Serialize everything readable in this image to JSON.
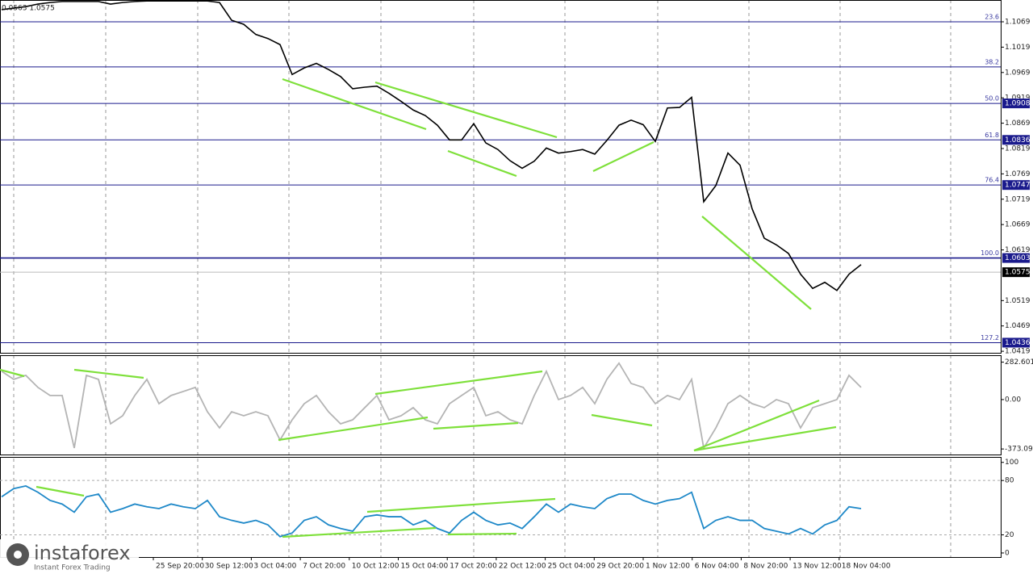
{
  "header": {
    "text": "0.0563 1.0575"
  },
  "chart_data": [
    {
      "type": "line",
      "color": "#000000",
      "values": [
        1.1093,
        1.1096,
        1.1099,
        1.1104,
        1.1107,
        1.1109,
        1.1109,
        1.1109,
        1.1109,
        1.1104,
        1.1107,
        1.1109,
        1.111,
        1.111,
        1.111,
        1.111,
        1.111,
        1.111,
        1.1107,
        1.1072,
        1.1064,
        1.1044,
        1.1036,
        1.1024,
        1.0965,
        1.0978,
        1.0987,
        1.0975,
        1.0961,
        1.0937,
        1.094,
        1.0942,
        1.0928,
        1.0912,
        1.0895,
        1.0884,
        1.0865,
        1.0836,
        1.0836,
        1.0868,
        1.083,
        1.0817,
        1.0795,
        1.078,
        1.0794,
        1.082,
        1.081,
        1.0813,
        1.0817,
        1.0808,
        1.0835,
        1.0865,
        1.0875,
        1.0866,
        1.0833,
        1.0899,
        1.09,
        1.092,
        1.0714,
        1.0746,
        1.081,
        1.0786,
        1.07,
        1.0642,
        1.0629,
        1.0612,
        1.0571,
        1.0543,
        1.0555,
        1.0539,
        1.0571,
        1.059
      ],
      "ylim": [
        1.0416,
        1.1112
      ],
      "yticks": [
        1.1069,
        1.1019,
        1.0969,
        1.0919,
        1.0869,
        1.0819,
        1.0769,
        1.0719,
        1.0669,
        1.0619,
        1.0519,
        1.0469,
        1.0419
      ],
      "fib_levels": [
        {
          "label": "23.6",
          "value": 1.1069
        },
        {
          "label": "38.2",
          "value": 1.098
        },
        {
          "label": "50.0",
          "value": 1.0908,
          "value_label": "1.0908"
        },
        {
          "label": "61.8",
          "value": 1.0836,
          "value_label": "1.0836"
        },
        {
          "label": "76.4",
          "value": 1.0747,
          "value_label": "1.0747"
        },
        {
          "label": "100.0",
          "value": 1.0603,
          "value_label": "1.0603"
        },
        {
          "label": "127.2",
          "value": 1.0436,
          "value_label": "1.0436"
        }
      ],
      "current_price": 1.0575
    },
    {
      "type": "line",
      "color": "#b4b4b4",
      "values": [
        214,
        153,
        183,
        92,
        31,
        31,
        -366,
        183,
        153,
        -183,
        -122,
        31,
        153,
        -31,
        31,
        61,
        92,
        -92,
        -214,
        -92,
        -122,
        -92,
        -122,
        -305,
        -153,
        -31,
        31,
        -92,
        -183,
        -153,
        -61,
        31,
        -153,
        -122,
        -61,
        -153,
        -183,
        -31,
        31,
        92,
        -122,
        -92,
        -153,
        -183,
        31,
        214,
        0,
        31,
        92,
        -31,
        153,
        275,
        122,
        92,
        -31,
        31,
        0,
        153,
        -366,
        -214,
        -31,
        31,
        -31,
        -61,
        0,
        -31,
        -214,
        -61,
        -31,
        0,
        183,
        92
      ],
      "ylim": [
        -415,
        335
      ],
      "yticks": [
        282.6012,
        {
          "value": 0,
          "label": "0.00"
        },
        -373.0978
      ]
    },
    {
      "type": "line",
      "color": "#1e88c8",
      "values": [
        62,
        71,
        74,
        67,
        58,
        54,
        45,
        62,
        65,
        45,
        49,
        54,
        51,
        49,
        54,
        51,
        49,
        58,
        40,
        36,
        33,
        36,
        31,
        18,
        22,
        36,
        40,
        31,
        27,
        24,
        40,
        42,
        40,
        40,
        31,
        36,
        27,
        22,
        36,
        45,
        36,
        31,
        33,
        27,
        40,
        54,
        45,
        54,
        51,
        49,
        60,
        65,
        65,
        58,
        54,
        58,
        60,
        67,
        27,
        36,
        40,
        36,
        36,
        27,
        24,
        21,
        27,
        21,
        31,
        36,
        51,
        49
      ],
      "ylim": [
        -4.5,
        106
      ],
      "yticks": [
        100,
        80,
        20,
        0
      ],
      "levels": [
        80,
        20
      ]
    }
  ],
  "time_axis": {
    "labels": [
      "25 Sep 20:00",
      "30 Sep 12:00",
      "3 Oct 04:00",
      "7 Oct 20:00",
      "10 Oct 12:00",
      "15 Oct 04:00",
      "17 Oct 20:00",
      "22 Oct 12:00",
      "25 Oct 04:00",
      "29 Oct 20:00",
      "1 Nov 12:00",
      "6 Nov 04:00",
      "8 Nov 20:00",
      "13 Nov 12:00",
      "18 Nov 04:00"
    ]
  },
  "logo": {
    "name": "instaforex",
    "tagline": "Instant Forex Trading"
  }
}
